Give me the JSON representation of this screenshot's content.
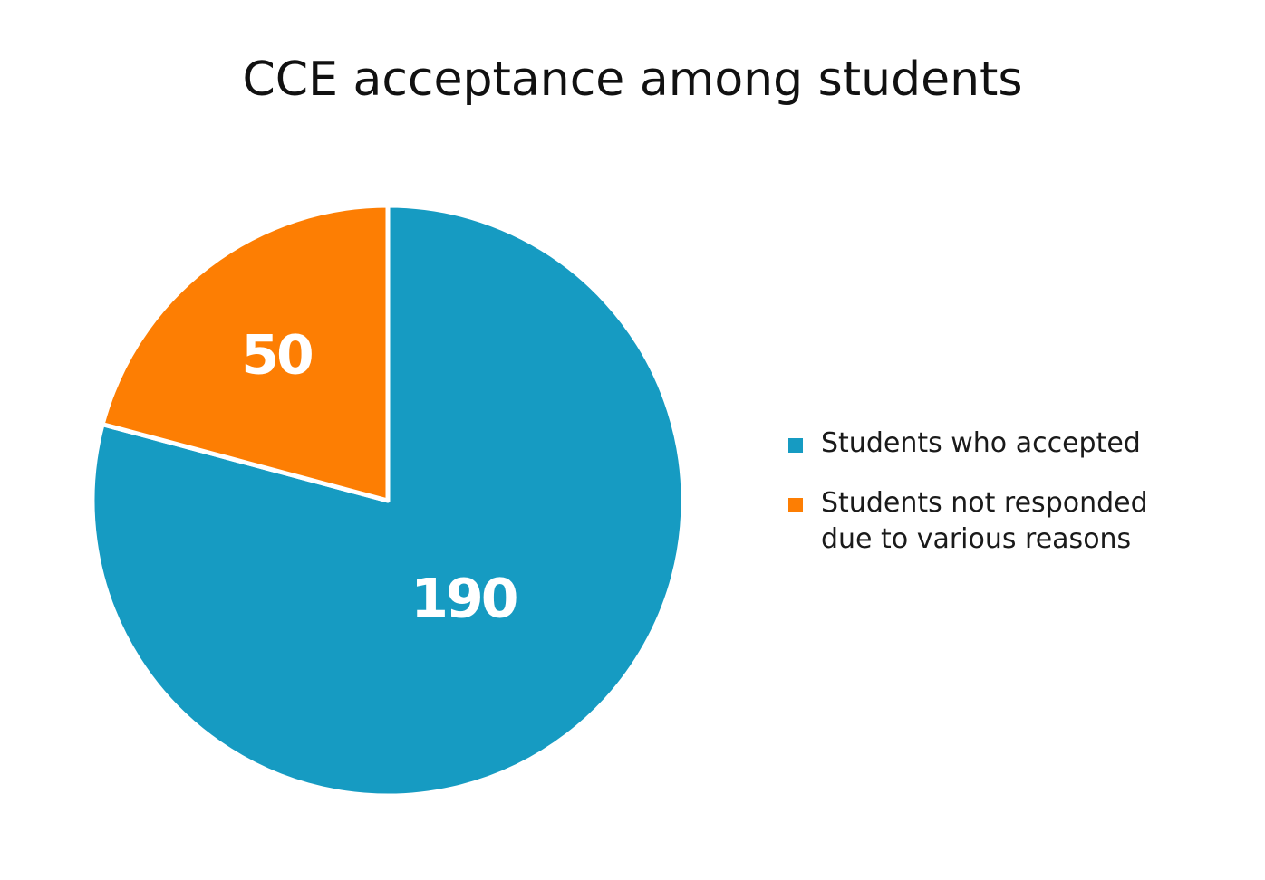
{
  "title": "CCE acceptance among students",
  "chart_data": {
    "type": "pie",
    "title": "CCE acceptance among students",
    "slices": [
      {
        "label": "Students who accepted",
        "value": 190,
        "color": "#169bc2"
      },
      {
        "label": "Students not responded due to various reasons",
        "value": 50,
        "color": "#fd7e03"
      }
    ],
    "start": "12 o'clock",
    "direction": "clockwise",
    "legend_position": "right"
  }
}
